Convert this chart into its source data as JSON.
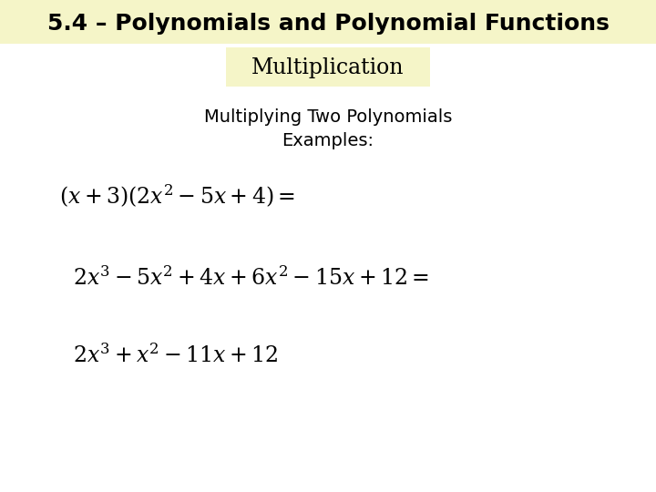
{
  "title": "5.4 – Polynomials and Polynomial Functions",
  "subtitle": "Multiplication",
  "title_bg": "#f5f5c8",
  "subtitle_bg": "#f5f5c8",
  "body_bg": "#ffffff",
  "subheading_line1": "Multiplying Two Polynomials",
  "subheading_line2": "Examples:",
  "line1": "$(x+3)(2x^2-5x+4)=$",
  "line2": "$2x^3-5x^2+4x+6x^2-15x +12 =$",
  "line3": "$2x^3+x^2-11x +12$",
  "title_fontsize": 18,
  "subtitle_fontsize": 17,
  "subheading_fontsize": 14,
  "math_fontsize": 17,
  "text_color": "#000000",
  "fig_width": 7.2,
  "fig_height": 5.4,
  "dpi": 100
}
